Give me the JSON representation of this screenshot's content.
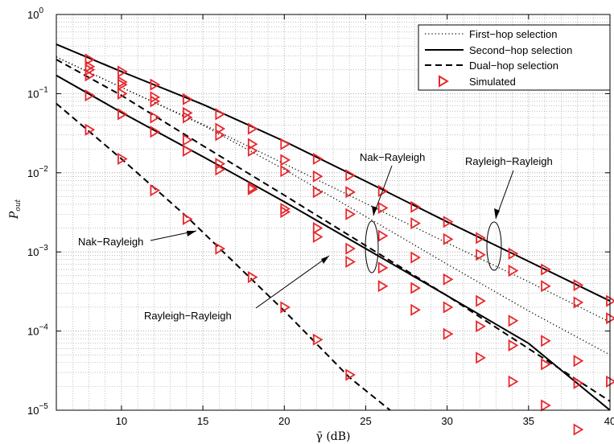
{
  "chart_data": {
    "type": "line",
    "xlabel": "γ̄ (dB)",
    "ylabel_main": "P",
    "ylabel_sub": "out",
    "xlim": [
      6,
      40
    ],
    "ylim": [
      1e-05,
      1
    ],
    "yscale": "log",
    "grid": true,
    "legend_placement": "top-right",
    "x_ticks": [
      10,
      15,
      20,
      25,
      30,
      35,
      40
    ],
    "y_ticks": [
      {
        "base": "10",
        "exp": "0",
        "value": 1
      },
      {
        "base": "10",
        "exp": "−1",
        "value": 0.1
      },
      {
        "base": "10",
        "exp": "−2",
        "value": 0.01
      },
      {
        "base": "10",
        "exp": "−3",
        "value": 0.001
      },
      {
        "base": "10",
        "exp": "−4",
        "value": 0.0001
      },
      {
        "base": "10",
        "exp": "−5",
        "value": 1e-05
      }
    ],
    "legend": [
      {
        "label": "First−hop selection",
        "style": "dotted"
      },
      {
        "label": "Second−hop selection",
        "style": "solid"
      },
      {
        "label": "Dual−hop selection",
        "style": "dashed"
      },
      {
        "label": "Simulated",
        "style": "marker"
      }
    ],
    "series": [
      {
        "style": "solid",
        "x": [
          6,
          10,
          15,
          20,
          25,
          30,
          35,
          40
        ],
        "y": [
          0.42,
          0.19,
          0.073,
          0.025,
          0.0078,
          0.0024,
          0.00076,
          0.00024
        ]
      },
      {
        "style": "solid",
        "x": [
          6,
          10,
          15,
          20,
          25,
          30,
          35,
          40
        ],
        "y": [
          0.17,
          0.058,
          0.016,
          0.0043,
          0.0011,
          0.00028,
          7e-05,
          1e-05
        ]
      },
      {
        "style": "dotted",
        "x": [
          6,
          10,
          15,
          20,
          25,
          30,
          35,
          40
        ],
        "y": [
          0.29,
          0.12,
          0.041,
          0.013,
          0.0041,
          0.0013,
          0.00042,
          0.00013
        ]
      },
      {
        "style": "dotted",
        "x": [
          6,
          10,
          15,
          20,
          25,
          30,
          35,
          40
        ],
        "y": [
          0.29,
          0.12,
          0.04,
          0.011,
          0.0028,
          0.0007,
          0.00018,
          5e-05
        ]
      },
      {
        "style": "dashed",
        "x": [
          6,
          10,
          15,
          20,
          25,
          30,
          35,
          40
        ],
        "y": [
          0.27,
          0.095,
          0.022,
          0.0052,
          0.0012,
          0.00028,
          6e-05,
          1.3e-05
        ]
      },
      {
        "style": "dashed",
        "x": [
          6,
          10,
          14,
          20,
          24,
          26.5
        ],
        "y": [
          0.075,
          0.015,
          0.0028,
          0.00018,
          2.6e-05,
          1e-05
        ]
      }
    ],
    "simulated": [
      {
        "x": [
          8,
          10,
          12,
          14,
          16,
          18,
          20,
          22,
          24,
          26,
          28,
          30,
          32,
          34,
          36,
          38,
          40
        ],
        "y": [
          0.27,
          0.19,
          0.13,
          0.085,
          0.055,
          0.036,
          0.023,
          0.015,
          0.0093,
          0.0059,
          0.0037,
          0.0024,
          0.0015,
          0.00095,
          0.0006,
          0.00038,
          0.00024
        ]
      },
      {
        "x": [
          8,
          10,
          12,
          14,
          16,
          18,
          20,
          22,
          24,
          26,
          28,
          30,
          32,
          34,
          36,
          38,
          40
        ],
        "y": [
          0.22,
          0.14,
          0.09,
          0.057,
          0.036,
          0.023,
          0.0145,
          0.009,
          0.0057,
          0.0036,
          0.0023,
          0.00145,
          0.00092,
          0.00058,
          0.00037,
          0.00023,
          0.000145
        ]
      },
      {
        "x": [
          8,
          10,
          12,
          14,
          16,
          18,
          20,
          22,
          24,
          26,
          28,
          30,
          32,
          34,
          36,
          38,
          40
        ],
        "y": [
          0.2,
          0.13,
          0.08,
          0.05,
          0.03,
          0.019,
          0.0105,
          0.0057,
          0.003,
          0.0016,
          0.00085,
          0.00045,
          0.00024,
          0.000135,
          7.52e-05,
          4.2e-05,
          2.3e-05
        ]
      },
      {
        "x": [
          8,
          10,
          12,
          14,
          16,
          18,
          20,
          22,
          24,
          26,
          28,
          30,
          32,
          34,
          36,
          38,
          40
        ],
        "y": [
          0.17,
          0.1,
          0.05,
          0.026,
          0.013,
          0.0065,
          0.0032,
          0.00155,
          0.00075,
          0.00037,
          0.000185,
          9.2e-05,
          4.6e-05,
          2.3e-05,
          1.15e-05,
          5.7e-06,
          2.9e-06
        ]
      },
      {
        "x": [
          8,
          10,
          12,
          14,
          16,
          18,
          20,
          22,
          24,
          26,
          28,
          30,
          32,
          34,
          36,
          38
        ],
        "y": [
          0.095,
          0.055,
          0.033,
          0.019,
          0.011,
          0.0062,
          0.0035,
          0.002,
          0.0011,
          0.00063,
          0.00035,
          0.0002,
          0.000115,
          6.6e-05,
          3.8e-05,
          2.2e-05
        ]
      },
      {
        "x": [
          8,
          10,
          12,
          14,
          16,
          18,
          20,
          22,
          24
        ],
        "y": [
          0.035,
          0.015,
          0.006,
          0.0026,
          0.0011,
          0.00048,
          0.0002,
          7.8e-05,
          2.8e-05
        ]
      }
    ],
    "annotations": [
      {
        "text": "Nak−Rayleigh"
      },
      {
        "text": "Rayleigh−Rayleigh"
      },
      {
        "text": "Nak−Rayleigh"
      },
      {
        "text": "Rayleigh−Rayleigh"
      }
    ],
    "colors": {
      "marker": "#e8282d",
      "line": "#000000",
      "grid": "#9a9a9a"
    }
  }
}
